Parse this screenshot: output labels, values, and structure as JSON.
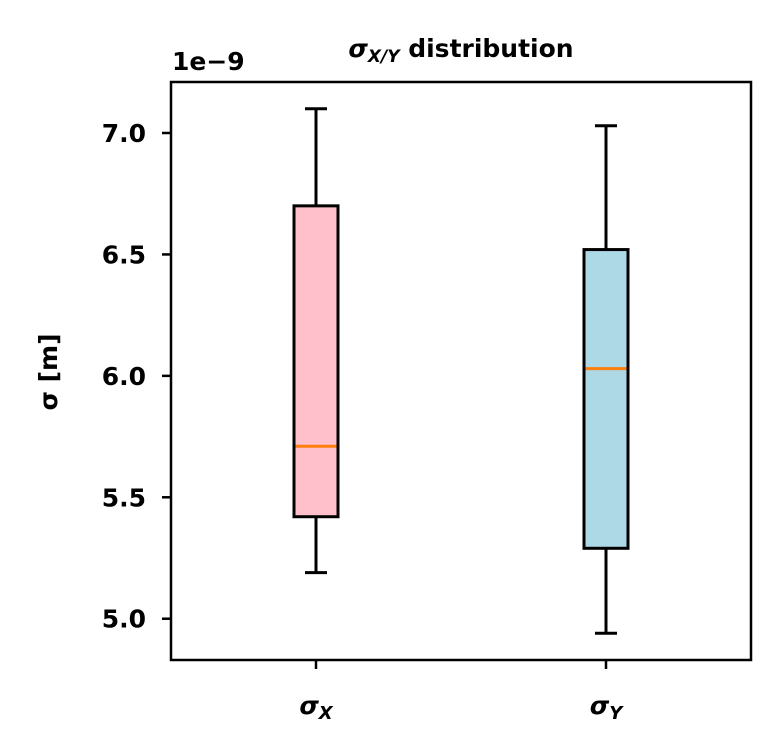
{
  "chart_data": {
    "type": "box",
    "title": {
      "prefix": "σ",
      "subscript": "X/Y",
      "suffix": " distribution"
    },
    "ylabel": "σ [m]",
    "offset_text": "1e−9",
    "ylim": [
      4.83,
      7.21
    ],
    "yticks": [
      5.0,
      5.5,
      6.0,
      6.5,
      7.0
    ],
    "ytick_labels": [
      "5.0",
      "5.5",
      "6.0",
      "6.5",
      "7.0"
    ],
    "boxes": [
      {
        "label": {
          "base": "σ",
          "sub": "X"
        },
        "whisker_low": 5.19,
        "q1": 5.42,
        "median": 5.71,
        "q3": 6.7,
        "whisker_high": 7.1,
        "fill": "#ffc0cb"
      },
      {
        "label": {
          "base": "σ",
          "sub": "Y"
        },
        "whisker_low": 4.94,
        "q1": 5.29,
        "median": 6.03,
        "q3": 6.52,
        "whisker_high": 7.03,
        "fill": "#add8e6"
      }
    ],
    "colors": {
      "median": "#ff7f0e",
      "box_edge": "#000000",
      "axes": "#000000"
    },
    "grid": false,
    "legend": "none"
  }
}
